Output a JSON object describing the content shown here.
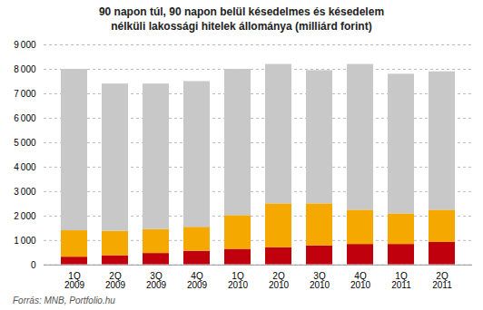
{
  "chart_data": {
    "type": "bar",
    "stacked": true,
    "title": "90 napon túl, 90 napon belül késedelmes és késedelem\nnélküli lakossági hitelek állománya (milliárd forint)",
    "source": "Forrás: MNB, Portfolio.hu",
    "categories": [
      "1Q\n2009",
      "2Q\n2009",
      "3Q\n2009",
      "4Q\n2009",
      "1Q\n2010",
      "2Q\n2010",
      "3Q\n2010",
      "4Q\n2010",
      "1Q\n2011",
      "2Q\n2011"
    ],
    "series": [
      {
        "color": "#c0000c",
        "values": [
          320,
          380,
          470,
          560,
          640,
          700,
          780,
          840,
          840,
          920
        ]
      },
      {
        "color": "#f5a800",
        "values": [
          1080,
          1000,
          980,
          980,
          1380,
          1800,
          1720,
          1400,
          1250,
          1320
        ]
      },
      {
        "color": "#c8c8c8",
        "values": [
          6600,
          6020,
          5950,
          5960,
          5980,
          5700,
          5450,
          5960,
          5710,
          5660
        ]
      }
    ],
    "ylim": [
      0,
      9000
    ],
    "yticks": [
      0,
      {
        "value": 1000,
        "label": "1 000"
      },
      {
        "value": 2000,
        "label": "2 000"
      },
      {
        "value": 3000,
        "label": "3 000"
      },
      {
        "value": 4000,
        "label": "4 000"
      },
      {
        "value": 5000,
        "label": "5 000"
      },
      {
        "value": 6000,
        "label": "6 000"
      },
      {
        "value": 7000,
        "label": "7 000"
      },
      {
        "value": 8000,
        "label": "8 000"
      },
      {
        "value": 9000,
        "label": "9 000"
      }
    ],
    "grid": true
  }
}
